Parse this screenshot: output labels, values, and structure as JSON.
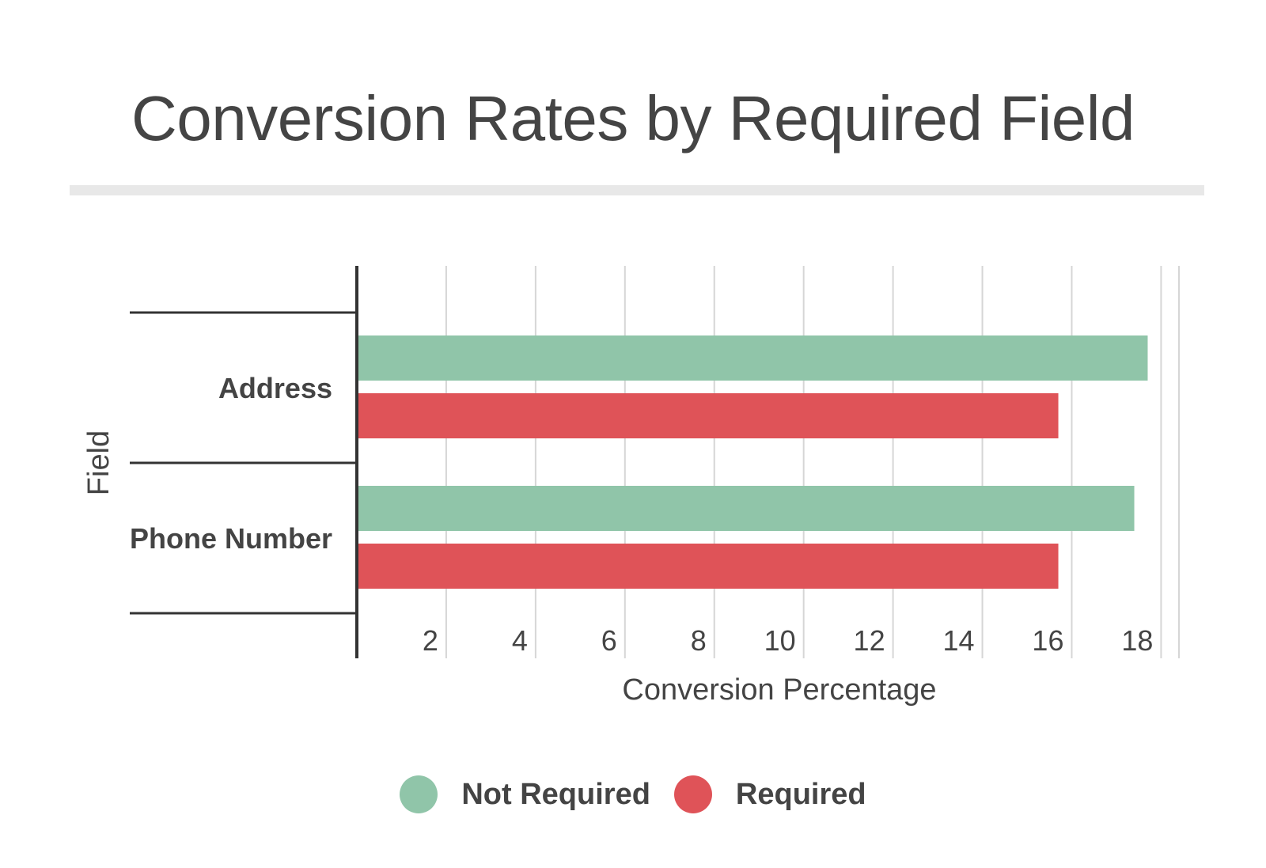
{
  "colors": {
    "not_required": "#90c5a9",
    "required": "#df5358",
    "axis": "#333333",
    "grid": "#d6d6d6",
    "divider": "#e8e8e8",
    "text": "#444444"
  },
  "chart_data": {
    "type": "bar",
    "orientation": "horizontal",
    "title": "Conversion Rates by Required Field",
    "xlabel": "Conversion Percentage",
    "ylabel": "Field",
    "categories": [
      "Address",
      "Phone Number"
    ],
    "series": [
      {
        "name": "Not Required",
        "values": [
          17.7,
          17.4
        ]
      },
      {
        "name": "Required",
        "values": [
          15.7,
          15.7
        ]
      }
    ],
    "xlim": [
      0,
      18.4
    ],
    "xticks": [
      2,
      4,
      6,
      8,
      10,
      12,
      14,
      16,
      18
    ],
    "grid": true,
    "legend": "bottom-center"
  }
}
